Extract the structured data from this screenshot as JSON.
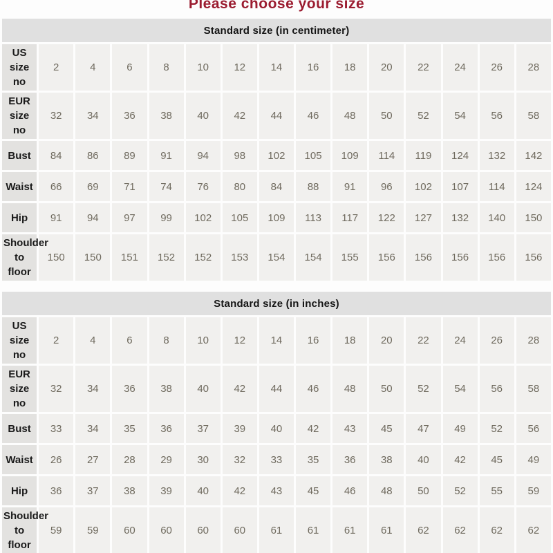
{
  "title": "Please choose your size",
  "colors": {
    "title_text": "#9b1c30",
    "caption_bg": "#e0e0e0",
    "label_bg": "#e3e2e0",
    "cell_bg": "#f1f0ee",
    "value_text": "#6f6a5e"
  },
  "tables": [
    {
      "caption": "Standard size (in centimeter)",
      "rows": [
        {
          "label": "US size no",
          "values": [
            "2",
            "4",
            "6",
            "8",
            "10",
            "12",
            "14",
            "16",
            "18",
            "20",
            "22",
            "24",
            "26",
            "28"
          ]
        },
        {
          "label": "EUR size no",
          "values": [
            "32",
            "34",
            "36",
            "38",
            "40",
            "42",
            "44",
            "46",
            "48",
            "50",
            "52",
            "54",
            "56",
            "58"
          ]
        },
        {
          "label": "Bust",
          "values": [
            "84",
            "86",
            "89",
            "91",
            "94",
            "98",
            "102",
            "105",
            "109",
            "114",
            "119",
            "124",
            "132",
            "142"
          ]
        },
        {
          "label": "Waist",
          "values": [
            "66",
            "69",
            "71",
            "74",
            "76",
            "80",
            "84",
            "88",
            "91",
            "96",
            "102",
            "107",
            "114",
            "124"
          ]
        },
        {
          "label": "Hip",
          "values": [
            "91",
            "94",
            "97",
            "99",
            "102",
            "105",
            "109",
            "113",
            "117",
            "122",
            "127",
            "132",
            "140",
            "150"
          ]
        },
        {
          "label": "Shoulder to floor",
          "values": [
            "150",
            "150",
            "151",
            "152",
            "152",
            "153",
            "154",
            "154",
            "155",
            "156",
            "156",
            "156",
            "156",
            "156"
          ]
        }
      ]
    },
    {
      "caption": "Standard size (in inches)",
      "rows": [
        {
          "label": "US size no",
          "values": [
            "2",
            "4",
            "6",
            "8",
            "10",
            "12",
            "14",
            "16",
            "18",
            "20",
            "22",
            "24",
            "26",
            "28"
          ]
        },
        {
          "label": "EUR size no",
          "values": [
            "32",
            "34",
            "36",
            "38",
            "40",
            "42",
            "44",
            "46",
            "48",
            "50",
            "52",
            "54",
            "56",
            "58"
          ]
        },
        {
          "label": "Bust",
          "values": [
            "33",
            "34",
            "35",
            "36",
            "37",
            "39",
            "40",
            "42",
            "43",
            "45",
            "47",
            "49",
            "52",
            "56"
          ]
        },
        {
          "label": "Waist",
          "values": [
            "26",
            "27",
            "28",
            "29",
            "30",
            "32",
            "33",
            "35",
            "36",
            "38",
            "40",
            "42",
            "45",
            "49"
          ]
        },
        {
          "label": "Hip",
          "values": [
            "36",
            "37",
            "38",
            "39",
            "40",
            "42",
            "43",
            "45",
            "46",
            "48",
            "50",
            "52",
            "55",
            "59"
          ]
        },
        {
          "label": "Shoulder to floor",
          "values": [
            "59",
            "59",
            "60",
            "60",
            "60",
            "60",
            "61",
            "61",
            "61",
            "61",
            "62",
            "62",
            "62",
            "62"
          ]
        }
      ]
    }
  ]
}
